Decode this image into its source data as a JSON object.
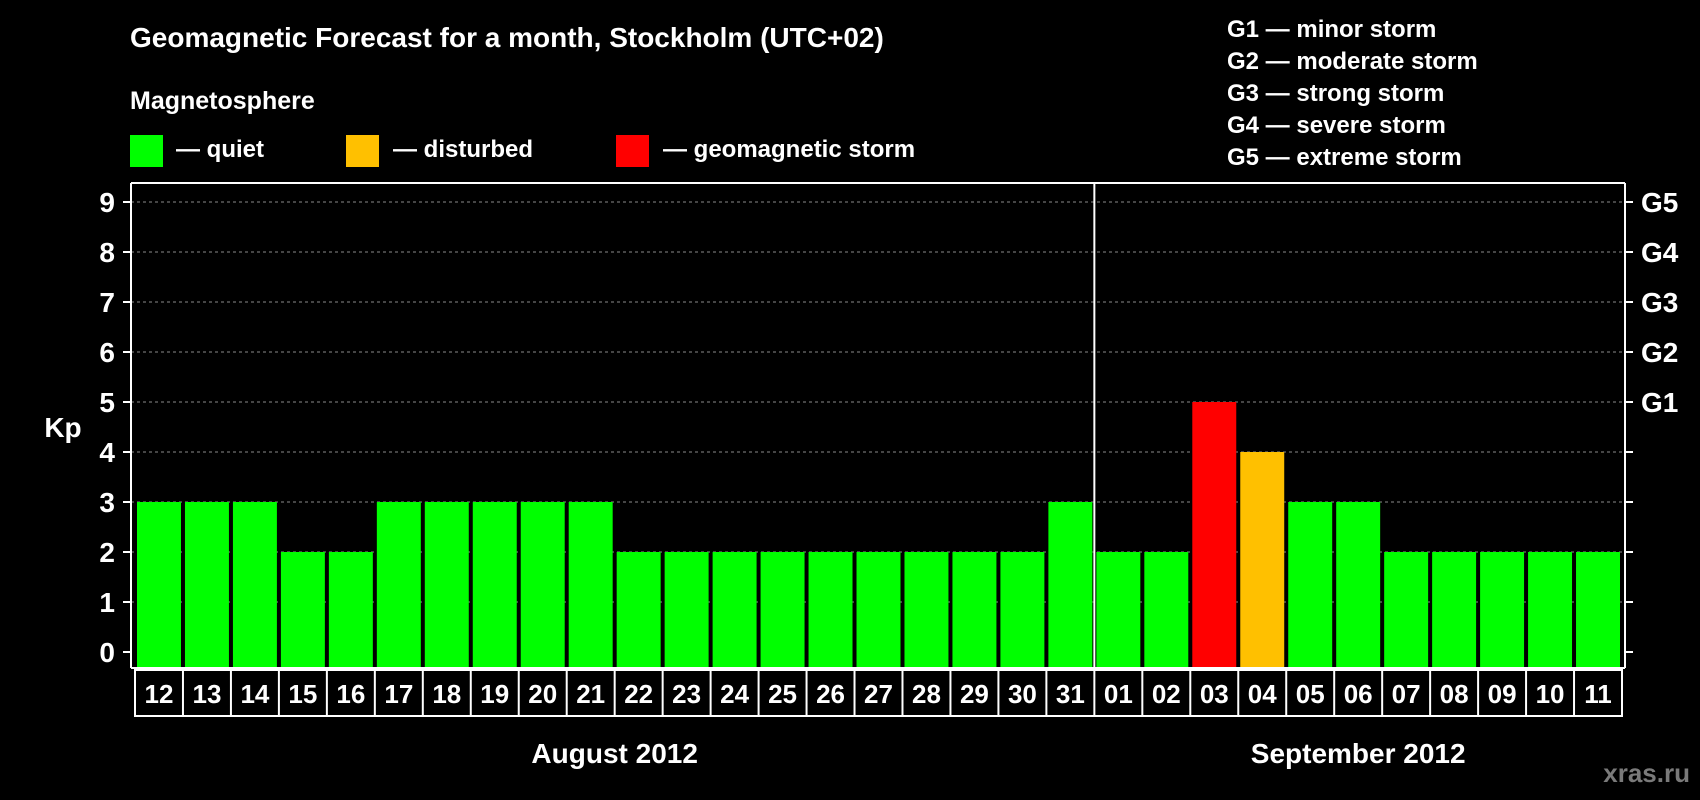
{
  "chart_data": {
    "type": "bar",
    "title": "Geomagnetic Forecast for a month, Stockholm (UTC+02)",
    "legend_title": "Magnetosphere",
    "legend": [
      {
        "label": "— quiet",
        "color": "#00ff00"
      },
      {
        "label": "— disturbed",
        "color": "#ffc000"
      },
      {
        "label": "— geomagnetic storm",
        "color": "#ff0000"
      }
    ],
    "storm_scale": [
      "G1 — minor storm",
      "G2 — moderate storm",
      "G3 — strong storm",
      "G4 — severe storm",
      "G5 — extreme storm"
    ],
    "ylabel": "Kp",
    "ylim": [
      0,
      9
    ],
    "yticks": [
      "0",
      "1",
      "2",
      "3",
      "4",
      "5",
      "6",
      "7",
      "8",
      "9"
    ],
    "right_ticks": [
      {
        "kp": 5,
        "label": "G1"
      },
      {
        "kp": 6,
        "label": "G2"
      },
      {
        "kp": 7,
        "label": "G3"
      },
      {
        "kp": 8,
        "label": "G4"
      },
      {
        "kp": 9,
        "label": "G5"
      }
    ],
    "months": [
      {
        "label": "August 2012",
        "start": 0,
        "end": 19
      },
      {
        "label": "September 2012",
        "start": 20,
        "end": 30
      }
    ],
    "categories": [
      "12",
      "13",
      "14",
      "15",
      "16",
      "17",
      "18",
      "19",
      "20",
      "21",
      "22",
      "23",
      "24",
      "25",
      "26",
      "27",
      "28",
      "29",
      "30",
      "31",
      "01",
      "02",
      "03",
      "04",
      "05",
      "06",
      "07",
      "08",
      "09",
      "10",
      "11"
    ],
    "values": [
      3,
      3,
      3,
      2,
      2,
      3,
      3,
      3,
      3,
      3,
      2,
      2,
      2,
      2,
      2,
      2,
      2,
      2,
      2,
      3,
      2,
      2,
      5,
      4,
      3,
      3,
      2,
      2,
      2,
      2,
      2
    ],
    "status": [
      "quiet",
      "quiet",
      "quiet",
      "quiet",
      "quiet",
      "quiet",
      "quiet",
      "quiet",
      "quiet",
      "quiet",
      "quiet",
      "quiet",
      "quiet",
      "quiet",
      "quiet",
      "quiet",
      "quiet",
      "quiet",
      "quiet",
      "quiet",
      "quiet",
      "quiet",
      "geomagnetic storm",
      "disturbed",
      "quiet",
      "quiet",
      "quiet",
      "quiet",
      "quiet",
      "quiet",
      "quiet"
    ],
    "grid": true
  },
  "colors": {
    "quiet": "#00ff00",
    "disturbed": "#ffc000",
    "storm": "#ff0000",
    "background": "#000000",
    "text": "#ffffff"
  },
  "watermark": "xras.ru"
}
